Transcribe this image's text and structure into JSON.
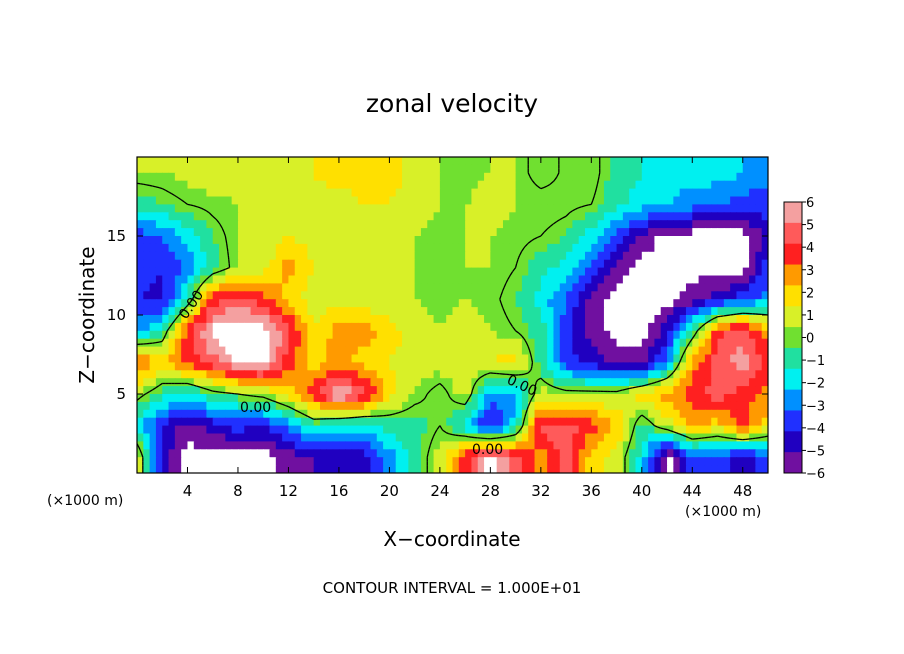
{
  "chart_data": {
    "type": "heatmap",
    "title": "zonal velocity",
    "xlabel": "X−coordinate",
    "ylabel": "Z−coordinate",
    "x_unit_left": "(×1000 m)",
    "x_unit_right": "(×1000 m)",
    "footer": "CONTOUR INTERVAL = 1.000E+01",
    "xlim": [
      0,
      50
    ],
    "ylim": [
      0,
      20
    ],
    "x_ticks": [
      4,
      8,
      12,
      16,
      20,
      24,
      28,
      32,
      36,
      40,
      44,
      48
    ],
    "y_ticks": [
      5,
      10,
      15
    ],
    "colorbar": {
      "vmin": -6,
      "vmax": 6,
      "ticks": [
        6,
        5,
        4,
        3,
        2,
        1,
        0,
        -1,
        -2,
        -3,
        -4,
        -5,
        -6
      ],
      "colors": [
        "#f4a0a0",
        "#ff5a5a",
        "#ff2020",
        "#ff9a00",
        "#ffe000",
        "#d8f028",
        "#70e030",
        "#20e0a0",
        "#00f0f0",
        "#0090ff",
        "#2030ff",
        "#2000c0",
        "#7010a0"
      ],
      "out_of_range": "#ffffff"
    },
    "contour_labels": [
      "0.00",
      "0.00",
      "0.00",
      "0.00"
    ],
    "field": {
      "grid_x": [
        0,
        2,
        4,
        6,
        8,
        10,
        12,
        14,
        16,
        18,
        20,
        22,
        24,
        26,
        28,
        30,
        32,
        34,
        36,
        38,
        40,
        42,
        44,
        46,
        48,
        50
      ],
      "grid_z": [
        19,
        17,
        15,
        13,
        11,
        9,
        7,
        5,
        3,
        1
      ],
      "values": [
        [
          0.5,
          0.5,
          0.8,
          1.0,
          0.8,
          1.0,
          1.2,
          1.5,
          2.0,
          2.0,
          2.0,
          1.0,
          0.5,
          0.2,
          0.5,
          0.5,
          -0.5,
          0.2,
          0.5,
          -1.0,
          -1.5,
          -2.0,
          -2.0,
          -2.0,
          -2.5,
          -3.0
        ],
        [
          -1.0,
          -0.5,
          0.0,
          0.3,
          0.5,
          1.0,
          1.2,
          1.2,
          1.0,
          1.5,
          1.5,
          1.0,
          0.5,
          0.5,
          0.8,
          0.5,
          0.5,
          0.3,
          0.0,
          -1.0,
          -2.0,
          -2.5,
          -3.0,
          -3.5,
          -4.0,
          -4.0
        ],
        [
          -4.0,
          -3.5,
          -2.0,
          -0.5,
          0.5,
          0.8,
          1.5,
          1.0,
          1.0,
          1.0,
          1.0,
          0.5,
          0.3,
          0.5,
          0.5,
          0.3,
          0.0,
          -0.5,
          -2.0,
          -4.0,
          -5.5,
          -7.0,
          -7.0,
          -7.0,
          -7.0,
          -5.0
        ],
        [
          -4.0,
          -4.5,
          -3.5,
          -1.0,
          0.5,
          1.0,
          3.0,
          1.5,
          1.0,
          1.0,
          0.8,
          0.5,
          0.3,
          0.5,
          0.5,
          0.0,
          -1.0,
          -2.0,
          -3.5,
          -6.0,
          -7.0,
          -7.0,
          -7.0,
          -7.0,
          -7.0,
          -4.0
        ],
        [
          -4.5,
          -5.0,
          -1.0,
          4.0,
          5.0,
          4.0,
          2.0,
          1.0,
          1.0,
          1.0,
          0.5,
          0.5,
          0.3,
          0.5,
          0.3,
          -0.5,
          -2.0,
          -3.5,
          -6.0,
          -7.0,
          -7.0,
          -7.0,
          -6.0,
          -5.0,
          -4.0,
          -3.0
        ],
        [
          -3.0,
          -1.0,
          4.0,
          7.0,
          7.0,
          7.0,
          5.0,
          1.5,
          3.0,
          3.0,
          2.0,
          1.0,
          0.5,
          1.0,
          0.5,
          0.0,
          -1.0,
          -4.0,
          -6.0,
          -7.0,
          -7.0,
          -5.0,
          -1.0,
          4.0,
          5.0,
          3.0
        ],
        [
          4.0,
          2.0,
          4.0,
          5.0,
          7.0,
          7.0,
          4.0,
          2.0,
          3.0,
          2.0,
          1.5,
          1.0,
          1.0,
          1.0,
          1.5,
          2.0,
          -1.0,
          -4.0,
          -5.0,
          -6.0,
          -6.0,
          -3.0,
          3.0,
          5.0,
          6.0,
          4.0
        ],
        [
          0.5,
          -1.0,
          -2.0,
          -0.5,
          0.0,
          0.5,
          2.0,
          4.0,
          7.0,
          5.0,
          2.0,
          0.5,
          -0.5,
          1.0,
          -3.0,
          -3.0,
          1.0,
          0.5,
          0.5,
          0.5,
          2.0,
          3.0,
          4.0,
          5.0,
          4.0,
          3.0
        ],
        [
          -2.0,
          -4.5,
          -6.0,
          -5.0,
          -4.0,
          -4.5,
          -3.0,
          -1.0,
          -2.0,
          -2.0,
          -1.0,
          -1.0,
          0.0,
          -2.0,
          -5.0,
          -2.0,
          5.0,
          5.0,
          4.0,
          2.5,
          -1.0,
          1.0,
          3.0,
          2.0,
          4.0,
          2.0
        ],
        [
          1.5,
          -5.0,
          -7.0,
          -7.0,
          -7.0,
          -7.0,
          -6.0,
          -5.5,
          -5.0,
          -5.0,
          -3.0,
          -1.0,
          1.0,
          4.0,
          7.0,
          5.0,
          3.0,
          5.0,
          2.0,
          1.0,
          -2.0,
          -7.0,
          -4.0,
          -4.0,
          -5.0,
          -4.0
        ]
      ]
    }
  }
}
